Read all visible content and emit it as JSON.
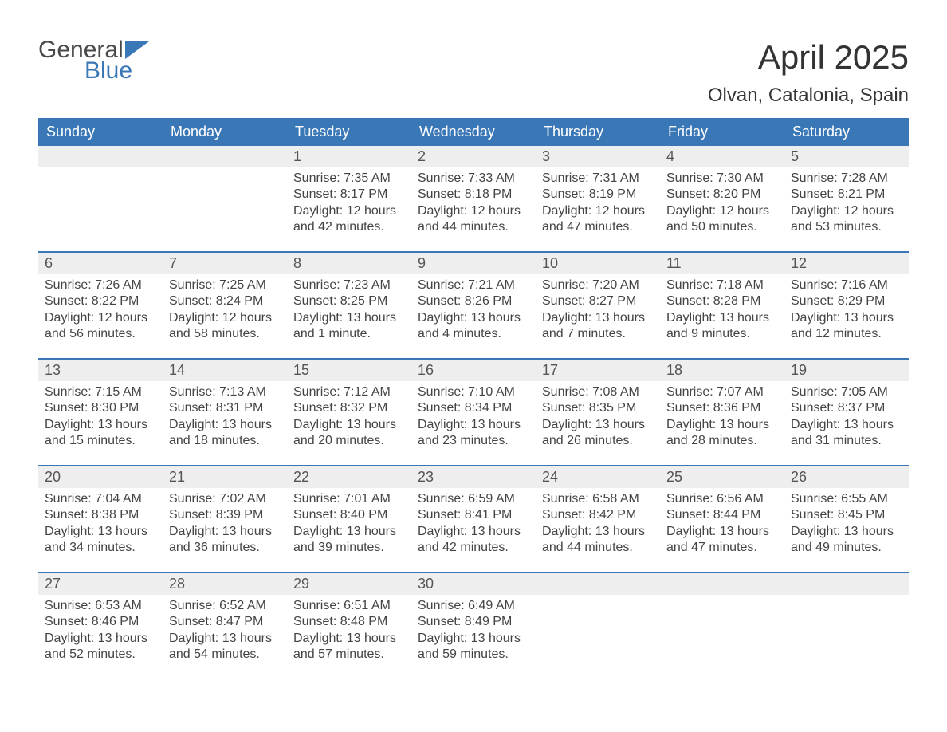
{
  "logo": {
    "word1": "General",
    "word2": "Blue",
    "triangle_color": "#3a77b6"
  },
  "title": "April 2025",
  "location": "Olvan, Catalonia, Spain",
  "colors": {
    "header_bg": "#3a77b6",
    "daynum_bg": "#eeeeee",
    "week_border": "#3a77b6",
    "body_text": "#444444",
    "title_text": "#333333"
  },
  "typography": {
    "title_fontsize": 42,
    "location_fontsize": 24,
    "dow_fontsize": 18,
    "body_fontsize": 16
  },
  "days_of_week": [
    "Sunday",
    "Monday",
    "Tuesday",
    "Wednesday",
    "Thursday",
    "Friday",
    "Saturday"
  ],
  "weeks": [
    [
      {
        "num": "",
        "sunrise": "",
        "sunset": "",
        "daylight": ""
      },
      {
        "num": "",
        "sunrise": "",
        "sunset": "",
        "daylight": ""
      },
      {
        "num": "1",
        "sunrise": "Sunrise: 7:35 AM",
        "sunset": "Sunset: 8:17 PM",
        "daylight": "Daylight: 12 hours and 42 minutes."
      },
      {
        "num": "2",
        "sunrise": "Sunrise: 7:33 AM",
        "sunset": "Sunset: 8:18 PM",
        "daylight": "Daylight: 12 hours and 44 minutes."
      },
      {
        "num": "3",
        "sunrise": "Sunrise: 7:31 AM",
        "sunset": "Sunset: 8:19 PM",
        "daylight": "Daylight: 12 hours and 47 minutes."
      },
      {
        "num": "4",
        "sunrise": "Sunrise: 7:30 AM",
        "sunset": "Sunset: 8:20 PM",
        "daylight": "Daylight: 12 hours and 50 minutes."
      },
      {
        "num": "5",
        "sunrise": "Sunrise: 7:28 AM",
        "sunset": "Sunset: 8:21 PM",
        "daylight": "Daylight: 12 hours and 53 minutes."
      }
    ],
    [
      {
        "num": "6",
        "sunrise": "Sunrise: 7:26 AM",
        "sunset": "Sunset: 8:22 PM",
        "daylight": "Daylight: 12 hours and 56 minutes."
      },
      {
        "num": "7",
        "sunrise": "Sunrise: 7:25 AM",
        "sunset": "Sunset: 8:24 PM",
        "daylight": "Daylight: 12 hours and 58 minutes."
      },
      {
        "num": "8",
        "sunrise": "Sunrise: 7:23 AM",
        "sunset": "Sunset: 8:25 PM",
        "daylight": "Daylight: 13 hours and 1 minute."
      },
      {
        "num": "9",
        "sunrise": "Sunrise: 7:21 AM",
        "sunset": "Sunset: 8:26 PM",
        "daylight": "Daylight: 13 hours and 4 minutes."
      },
      {
        "num": "10",
        "sunrise": "Sunrise: 7:20 AM",
        "sunset": "Sunset: 8:27 PM",
        "daylight": "Daylight: 13 hours and 7 minutes."
      },
      {
        "num": "11",
        "sunrise": "Sunrise: 7:18 AM",
        "sunset": "Sunset: 8:28 PM",
        "daylight": "Daylight: 13 hours and 9 minutes."
      },
      {
        "num": "12",
        "sunrise": "Sunrise: 7:16 AM",
        "sunset": "Sunset: 8:29 PM",
        "daylight": "Daylight: 13 hours and 12 minutes."
      }
    ],
    [
      {
        "num": "13",
        "sunrise": "Sunrise: 7:15 AM",
        "sunset": "Sunset: 8:30 PM",
        "daylight": "Daylight: 13 hours and 15 minutes."
      },
      {
        "num": "14",
        "sunrise": "Sunrise: 7:13 AM",
        "sunset": "Sunset: 8:31 PM",
        "daylight": "Daylight: 13 hours and 18 minutes."
      },
      {
        "num": "15",
        "sunrise": "Sunrise: 7:12 AM",
        "sunset": "Sunset: 8:32 PM",
        "daylight": "Daylight: 13 hours and 20 minutes."
      },
      {
        "num": "16",
        "sunrise": "Sunrise: 7:10 AM",
        "sunset": "Sunset: 8:34 PM",
        "daylight": "Daylight: 13 hours and 23 minutes."
      },
      {
        "num": "17",
        "sunrise": "Sunrise: 7:08 AM",
        "sunset": "Sunset: 8:35 PM",
        "daylight": "Daylight: 13 hours and 26 minutes."
      },
      {
        "num": "18",
        "sunrise": "Sunrise: 7:07 AM",
        "sunset": "Sunset: 8:36 PM",
        "daylight": "Daylight: 13 hours and 28 minutes."
      },
      {
        "num": "19",
        "sunrise": "Sunrise: 7:05 AM",
        "sunset": "Sunset: 8:37 PM",
        "daylight": "Daylight: 13 hours and 31 minutes."
      }
    ],
    [
      {
        "num": "20",
        "sunrise": "Sunrise: 7:04 AM",
        "sunset": "Sunset: 8:38 PM",
        "daylight": "Daylight: 13 hours and 34 minutes."
      },
      {
        "num": "21",
        "sunrise": "Sunrise: 7:02 AM",
        "sunset": "Sunset: 8:39 PM",
        "daylight": "Daylight: 13 hours and 36 minutes."
      },
      {
        "num": "22",
        "sunrise": "Sunrise: 7:01 AM",
        "sunset": "Sunset: 8:40 PM",
        "daylight": "Daylight: 13 hours and 39 minutes."
      },
      {
        "num": "23",
        "sunrise": "Sunrise: 6:59 AM",
        "sunset": "Sunset: 8:41 PM",
        "daylight": "Daylight: 13 hours and 42 minutes."
      },
      {
        "num": "24",
        "sunrise": "Sunrise: 6:58 AM",
        "sunset": "Sunset: 8:42 PM",
        "daylight": "Daylight: 13 hours and 44 minutes."
      },
      {
        "num": "25",
        "sunrise": "Sunrise: 6:56 AM",
        "sunset": "Sunset: 8:44 PM",
        "daylight": "Daylight: 13 hours and 47 minutes."
      },
      {
        "num": "26",
        "sunrise": "Sunrise: 6:55 AM",
        "sunset": "Sunset: 8:45 PM",
        "daylight": "Daylight: 13 hours and 49 minutes."
      }
    ],
    [
      {
        "num": "27",
        "sunrise": "Sunrise: 6:53 AM",
        "sunset": "Sunset: 8:46 PM",
        "daylight": "Daylight: 13 hours and 52 minutes."
      },
      {
        "num": "28",
        "sunrise": "Sunrise: 6:52 AM",
        "sunset": "Sunset: 8:47 PM",
        "daylight": "Daylight: 13 hours and 54 minutes."
      },
      {
        "num": "29",
        "sunrise": "Sunrise: 6:51 AM",
        "sunset": "Sunset: 8:48 PM",
        "daylight": "Daylight: 13 hours and 57 minutes."
      },
      {
        "num": "30",
        "sunrise": "Sunrise: 6:49 AM",
        "sunset": "Sunset: 8:49 PM",
        "daylight": "Daylight: 13 hours and 59 minutes."
      },
      {
        "num": "",
        "sunrise": "",
        "sunset": "",
        "daylight": ""
      },
      {
        "num": "",
        "sunrise": "",
        "sunset": "",
        "daylight": ""
      },
      {
        "num": "",
        "sunrise": "",
        "sunset": "",
        "daylight": ""
      }
    ]
  ]
}
